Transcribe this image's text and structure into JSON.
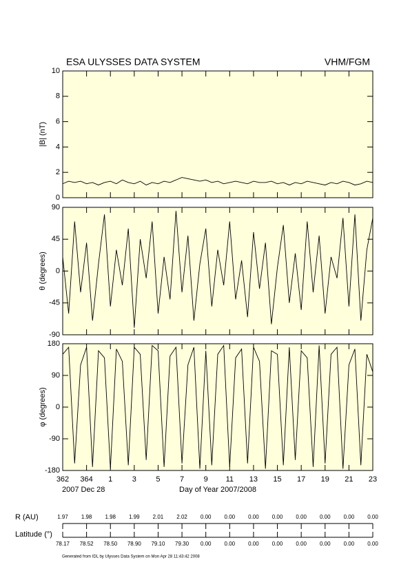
{
  "header": {
    "title": "ESA ULYSSES DATA SYSTEM",
    "instrument": "VHM/FGM"
  },
  "chart_data": [
    {
      "type": "line",
      "ylabel": "|B| (nT)",
      "ylim": [
        0,
        10
      ],
      "yticks": [
        0,
        2,
        4,
        6,
        8,
        10
      ],
      "xlim": [
        362,
        388
      ],
      "color": "#000000",
      "x": [
        362,
        362.5,
        363,
        363.5,
        364,
        364.5,
        365,
        365.5,
        366,
        366.5,
        367,
        367.5,
        368,
        368.5,
        369,
        369.5,
        370,
        370.5,
        371,
        371.5,
        372,
        372.5,
        373,
        373.5,
        374,
        374.5,
        375,
        375.5,
        376,
        376.5,
        377,
        377.5,
        378,
        378.5,
        379,
        379.5,
        380,
        380.5,
        381,
        381.5,
        382,
        382.5,
        383,
        383.5,
        384,
        384.5,
        385,
        385.5,
        386,
        386.5,
        387,
        387.5,
        388
      ],
      "values": [
        1.1,
        1.3,
        1.2,
        1.3,
        1.1,
        1.2,
        1.0,
        1.2,
        1.3,
        1.1,
        1.4,
        1.2,
        1.1,
        1.3,
        1.0,
        1.2,
        1.1,
        1.3,
        1.2,
        1.4,
        1.6,
        1.5,
        1.4,
        1.3,
        1.4,
        1.2,
        1.3,
        1.1,
        1.2,
        1.3,
        1.2,
        1.1,
        1.3,
        1.2,
        1.2,
        1.3,
        1.1,
        1.2,
        1.0,
        1.2,
        1.1,
        1.3,
        1.2,
        1.1,
        1.0,
        1.2,
        1.1,
        1.3,
        1.2,
        1.0,
        1.1,
        1.3,
        1.2
      ]
    },
    {
      "type": "line",
      "ylabel": "θ (degrees)",
      "ylim": [
        -90,
        90
      ],
      "yticks": [
        -90,
        -45,
        0,
        45,
        90
      ],
      "xlim": [
        362,
        388
      ],
      "color": "#000000",
      "x": [
        362,
        362.5,
        363,
        363.5,
        364,
        364.5,
        365,
        365.5,
        366,
        366.5,
        367,
        367.5,
        368,
        368.5,
        369,
        369.5,
        370,
        370.5,
        371,
        371.5,
        372,
        372.5,
        373,
        373.5,
        374,
        374.5,
        375,
        375.5,
        376,
        376.5,
        377,
        377.5,
        378,
        378.5,
        379,
        379.5,
        380,
        380.5,
        381,
        381.5,
        382,
        382.5,
        383,
        383.5,
        384,
        384.5,
        385,
        385.5,
        386,
        386.5,
        387,
        387.5,
        388
      ],
      "values": [
        20,
        -60,
        70,
        -30,
        40,
        -70,
        10,
        80,
        -50,
        30,
        -20,
        60,
        -80,
        45,
        -10,
        70,
        -60,
        20,
        -40,
        85,
        -30,
        50,
        -70,
        10,
        60,
        -50,
        30,
        -20,
        70,
        -40,
        15,
        -65,
        55,
        -25,
        40,
        -75,
        5,
        65,
        -45,
        25,
        -55,
        70,
        -30,
        50,
        -60,
        20,
        -10,
        75,
        -50,
        80,
        -70,
        30,
        75
      ]
    },
    {
      "type": "line",
      "ylabel": "φ (degrees)",
      "ylim": [
        -180,
        180
      ],
      "yticks": [
        -180,
        -90,
        0,
        90,
        180
      ],
      "xlim": [
        362,
        388
      ],
      "color": "#000000",
      "x": [
        362,
        362.5,
        363,
        363.5,
        364,
        364.5,
        365,
        365.5,
        366,
        366.5,
        367,
        367.5,
        368,
        368.5,
        369,
        369.5,
        370,
        370.5,
        371,
        371.5,
        372,
        372.5,
        373,
        373.5,
        374,
        374.5,
        375,
        375.5,
        376,
        376.5,
        377,
        377.5,
        378,
        378.5,
        379,
        379.5,
        380,
        380.5,
        381,
        381.5,
        382,
        382.5,
        383,
        383.5,
        384,
        384.5,
        385,
        385.5,
        386,
        386.5,
        387,
        387.5,
        388
      ],
      "values": [
        150,
        170,
        -160,
        120,
        170,
        -170,
        160,
        140,
        -175,
        165,
        130,
        -165,
        170,
        150,
        -150,
        175,
        160,
        -170,
        145,
        170,
        -160,
        120,
        170,
        -175,
        160,
        -165,
        150,
        175,
        -170,
        140,
        165,
        -160,
        170,
        130,
        -175,
        160,
        150,
        -165,
        170,
        -150,
        160,
        140,
        -170,
        175,
        -160,
        150,
        170,
        -175,
        120,
        165,
        -165,
        150,
        100
      ],
      "xticks": [
        362,
        364,
        {
          "value": 366,
          "label": "1"
        },
        {
          "value": 368,
          "label": "3"
        },
        {
          "value": 370,
          "label": "5"
        },
        {
          "value": 372,
          "label": "7"
        },
        {
          "value": 374,
          "label": "9"
        },
        {
          "value": 376,
          "label": "11"
        },
        {
          "value": 378,
          "label": "13"
        },
        {
          "value": 380,
          "label": "15"
        },
        {
          "value": 382,
          "label": "17"
        },
        {
          "value": 384,
          "label": "19"
        },
        {
          "value": 386,
          "label": "21"
        },
        {
          "value": 388,
          "label": "23"
        }
      ],
      "start_date": "2007 Dec 28",
      "xlabel": "Day of Year 2007/2008"
    }
  ],
  "ephemeris": {
    "r_label": "R (AU)",
    "r_values": [
      "1.97",
      "1.98",
      "1.98",
      "1.99",
      "2.01",
      "2.02",
      "0.00",
      "0.00",
      "0.00",
      "0.00",
      "0.00",
      "0.00",
      "0.00",
      "0.00"
    ],
    "lat_label": "Latitude (°)",
    "lat_values": [
      "78.17",
      "78.52",
      "78.50",
      "78.90",
      "79.10",
      "79.30",
      "0.00",
      "0.00",
      "0.00",
      "0.00",
      "0.00",
      "0.00",
      "0.00",
      "0.00"
    ]
  },
  "footer": "Generated from IDL by Ulysses Data System on Mon Apr 28 11:43:42 2008"
}
